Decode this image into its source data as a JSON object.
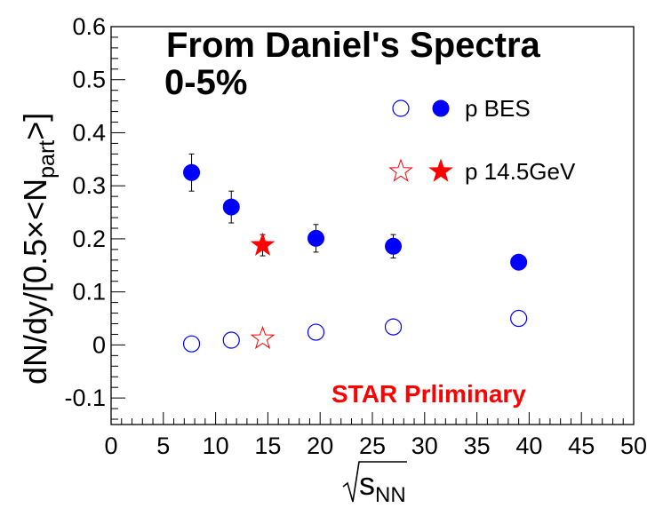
{
  "chart_data": {
    "type": "scatter",
    "title": "From Daniel's Spectra",
    "subtitle": "0-5%",
    "annotation": "STAR Prliminary",
    "xlabel": {
      "main": "s",
      "sub": "NN"
    },
    "ylabel": {
      "pre": "dN/dy/[0.5×<N",
      "sub": "part",
      "post": ">]"
    },
    "xlim": [
      0,
      50
    ],
    "ylim": [
      -0.15,
      0.6
    ],
    "xticks": [
      0,
      5,
      10,
      15,
      20,
      25,
      30,
      35,
      40,
      45,
      50
    ],
    "yticks": [
      -0.1,
      0,
      0.1,
      0.2,
      0.3,
      0.4,
      0.5,
      0.6
    ],
    "xtick_labels": [
      "0",
      "5",
      "10",
      "15",
      "20",
      "25",
      "30",
      "35",
      "40",
      "45",
      "50"
    ],
    "ytick_labels": [
      "-0.1",
      "0",
      "0.1",
      "0.2",
      "0.3",
      "0.4",
      "0.5",
      "0.6"
    ],
    "grid": false,
    "legend_position": "top-right",
    "series": [
      {
        "name": "p BES",
        "color": "#0000ff",
        "marker": "circle",
        "open": [
          {
            "x": 7.7,
            "y": 0.002
          },
          {
            "x": 11.5,
            "y": 0.009
          },
          {
            "x": 19.6,
            "y": 0.024
          },
          {
            "x": 27,
            "y": 0.034
          },
          {
            "x": 39,
            "y": 0.05
          }
        ],
        "filled": [
          {
            "x": 7.7,
            "y": 0.325,
            "err": 0.035
          },
          {
            "x": 11.5,
            "y": 0.26,
            "err": 0.03
          },
          {
            "x": 19.6,
            "y": 0.201,
            "err": 0.026
          },
          {
            "x": 27,
            "y": 0.186,
            "err": 0.022
          },
          {
            "x": 39,
            "y": 0.156,
            "err": 0.0
          }
        ]
      },
      {
        "name": "p 14.5GeV",
        "color": "#ff0000",
        "marker": "star",
        "open": [
          {
            "x": 14.5,
            "y": 0.012
          }
        ],
        "filled": [
          {
            "x": 14.5,
            "y": 0.188,
            "err": 0.02
          }
        ]
      }
    ],
    "colors": {
      "annotation": "#ff0000"
    }
  }
}
